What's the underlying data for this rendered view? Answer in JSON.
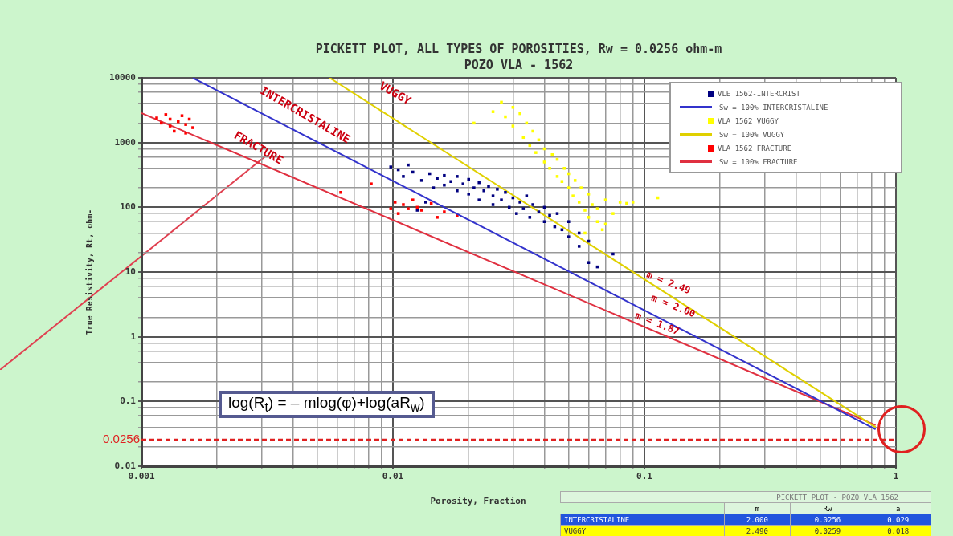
{
  "chart_data": {
    "type": "scatter",
    "title": "PICKETT PLOT, ALL TYPES OF POROSITIES, Rw = 0.0256 ohm-m",
    "subtitle": "POZO VLA - 1562",
    "xlabel": "Porosity, Fraction",
    "ylabel": "True Resistivity, Rt, ohm-",
    "log": "xy",
    "grid": true,
    "legend": "top right",
    "xlim": [
      0.001,
      1
    ],
    "ylim": [
      0.01,
      10000
    ],
    "xticks": [
      0.001,
      {
        "value": 0.002,
        "label": null
      },
      {
        "value": 0.003,
        "label": null
      },
      {
        "value": 0.004,
        "label": null
      },
      {
        "value": 0.005,
        "label": null
      },
      {
        "value": 0.006,
        "label": null
      },
      {
        "value": 0.007,
        "label": null
      },
      {
        "value": 0.008,
        "label": null
      },
      {
        "value": 0.009,
        "label": null
      },
      0.01,
      {
        "value": 0.02,
        "label": null
      },
      {
        "value": 0.03,
        "label": null
      },
      {
        "value": 0.04,
        "label": null
      },
      {
        "value": 0.05,
        "label": null
      },
      {
        "value": 0.06,
        "label": null
      },
      {
        "value": 0.07,
        "label": null
      },
      {
        "value": 0.08,
        "label": null
      },
      {
        "value": 0.09,
        "label": null
      },
      0.1,
      {
        "value": 0.2,
        "label": null
      },
      {
        "value": 0.3,
        "label": null
      },
      {
        "value": 0.4,
        "label": null
      },
      {
        "value": 0.5,
        "label": null
      },
      {
        "value": 0.6,
        "label": null
      },
      {
        "value": 0.7,
        "label": null
      },
      {
        "value": 0.8,
        "label": null
      },
      {
        "value": 0.9,
        "label": null
      },
      1
    ],
    "yticks": [
      0.01,
      {
        "value": 0.02,
        "label": null
      },
      {
        "value": 0.04,
        "label": null
      },
      {
        "value": 0.06,
        "label": null
      },
      {
        "value": 0.08,
        "label": null
      },
      0.1,
      {
        "value": 0.2,
        "label": null
      },
      {
        "value": 0.4,
        "label": null
      },
      {
        "value": 0.6,
        "label": null
      },
      {
        "value": 0.8,
        "label": null
      },
      1,
      {
        "value": 2,
        "label": null
      },
      {
        "value": 4,
        "label": null
      },
      {
        "value": 6,
        "label": null
      },
      {
        "value": 8,
        "label": null
      },
      10,
      {
        "value": 20,
        "label": null
      },
      {
        "value": 40,
        "label": null
      },
      {
        "value": 60,
        "label": null
      },
      {
        "value": 80,
        "label": null
      },
      100,
      {
        "value": 200,
        "label": null
      },
      {
        "value": 400,
        "label": null
      },
      {
        "value": 600,
        "label": null
      },
      {
        "value": 800,
        "label": null
      },
      1000,
      {
        "value": 2000,
        "label": null
      },
      {
        "value": 4000,
        "label": null
      },
      {
        "value": 6000,
        "label": null
      },
      {
        "value": 8000,
        "label": null
      },
      10000
    ],
    "series": [
      {
        "name": "VLE 1562-INTERCRIST",
        "type": "scatter",
        "marker": "square",
        "color": "#000080",
        "x": [
          0.0098,
          0.0105,
          0.011,
          0.0115,
          0.012,
          0.013,
          0.014,
          0.0145,
          0.015,
          0.016,
          0.016,
          0.017,
          0.018,
          0.018,
          0.019,
          0.02,
          0.02,
          0.021,
          0.022,
          0.022,
          0.023,
          0.024,
          0.025,
          0.025,
          0.026,
          0.027,
          0.028,
          0.029,
          0.03,
          0.031,
          0.032,
          0.033,
          0.034,
          0.035,
          0.036,
          0.038,
          0.04,
          0.04,
          0.042,
          0.044,
          0.045,
          0.047,
          0.05,
          0.05,
          0.055,
          0.055,
          0.06,
          0.06,
          0.065,
          0.075,
          0.0135,
          0.0125
        ],
        "values": [
          420,
          380,
          300,
          450,
          350,
          260,
          330,
          200,
          280,
          310,
          220,
          250,
          180,
          300,
          230,
          270,
          160,
          200,
          240,
          130,
          180,
          210,
          150,
          110,
          190,
          130,
          170,
          100,
          140,
          80,
          120,
          95,
          150,
          70,
          110,
          85,
          60,
          100,
          75,
          50,
          80,
          45,
          60,
          35,
          40,
          25,
          30,
          14,
          12,
          19,
          120,
          90
        ]
      },
      {
        "name": "Sw = 100% INTERCRISTALINE",
        "type": "line",
        "marker": "none",
        "color": "#3333cc",
        "x": [
          0.0016,
          0.83
        ],
        "values": [
          10000,
          0.037
        ]
      },
      {
        "name": "VLA 1562 VUGGY",
        "type": "scatter",
        "marker": "square",
        "color": "#ffff00",
        "x": [
          0.021,
          0.025,
          0.027,
          0.028,
          0.03,
          0.03,
          0.032,
          0.033,
          0.034,
          0.035,
          0.036,
          0.037,
          0.038,
          0.04,
          0.04,
          0.042,
          0.043,
          0.045,
          0.045,
          0.047,
          0.048,
          0.05,
          0.05,
          0.052,
          0.053,
          0.055,
          0.056,
          0.058,
          0.06,
          0.06,
          0.062,
          0.065,
          0.065,
          0.07,
          0.07,
          0.075,
          0.08,
          0.085,
          0.09,
          0.113,
          0.068,
          0.058
        ],
        "values": [
          2000,
          3000,
          4200,
          2500,
          3500,
          1800,
          2800,
          1200,
          2000,
          900,
          1500,
          700,
          1100,
          500,
          800,
          400,
          650,
          300,
          550,
          250,
          400,
          200,
          330,
          150,
          260,
          120,
          200,
          90,
          160,
          70,
          110,
          60,
          95,
          130,
          55,
          80,
          120,
          115,
          120,
          140,
          45,
          40
        ]
      },
      {
        "name": "Sw = 100% VUGGY",
        "type": "line",
        "marker": "none",
        "color": "#e0d000",
        "x": [
          0.0056,
          0.83
        ],
        "values": [
          10000,
          0.04
        ]
      },
      {
        "name": "VLA 1562 FRACTURE",
        "type": "scatter",
        "marker": "square",
        "color": "#ff0000",
        "x": [
          0.00115,
          0.0012,
          0.00125,
          0.0013,
          0.0013,
          0.00135,
          0.0014,
          0.00145,
          0.0015,
          0.0015,
          0.00155,
          0.0016,
          0.0062,
          0.0082,
          0.0098,
          0.0102,
          0.0105,
          0.011,
          0.0115,
          0.012,
          0.0125,
          0.013,
          0.0142,
          0.015,
          0.016,
          0.018
        ],
        "values": [
          2400,
          2000,
          2700,
          1800,
          2300,
          1500,
          2100,
          2600,
          1900,
          1400,
          2300,
          1700,
          170,
          230,
          95,
          120,
          80,
          110,
          95,
          130,
          100,
          90,
          115,
          70,
          85,
          75
        ]
      },
      {
        "name": "Sw = 100% FRACTURE",
        "type": "line",
        "marker": "none",
        "color": "#e03040",
        "x": [
          0.001,
          0.83
        ],
        "values": [
          2850,
          0.043
        ]
      }
    ],
    "ref_lines": [
      {
        "axis": "y",
        "value": 0.0256,
        "label": "0.0256",
        "color": "#e02020",
        "line_style": "dashed"
      }
    ],
    "annotations": [
      "INTERCRISTALINE",
      "VUGGY",
      "FRACTURE",
      "m = 2.49",
      "m = 2.00",
      "m = 1.87",
      "log(R$_{t}$) = – mlog(φ)+log(aR$_{w}$)",
      "PICKETT PLOT - POZO VLA 1562",
      "m",
      "Rw",
      "a",
      "INTERCRISTALINE",
      "2.000",
      "0.0256",
      "0.029",
      "VUGGY",
      "2.490",
      "0.0259",
      "0.018"
    ]
  }
}
